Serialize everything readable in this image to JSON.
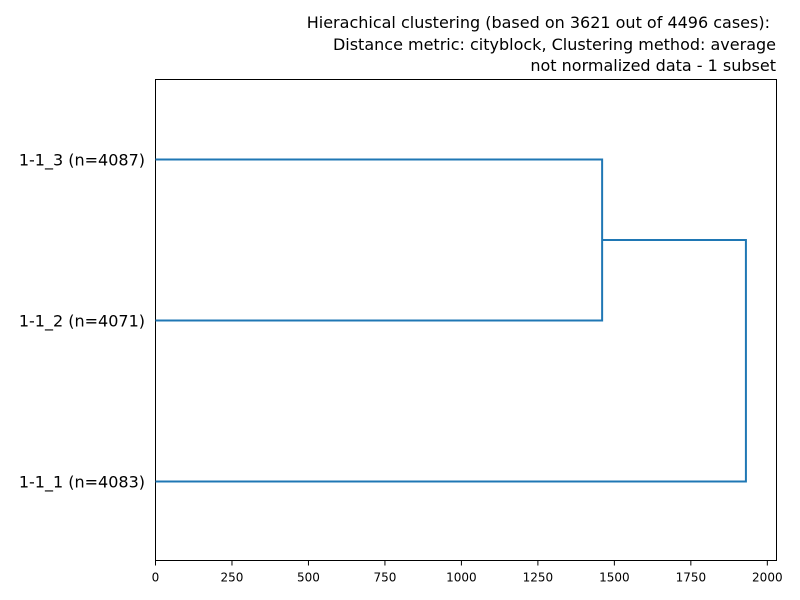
{
  "chart_data": {
    "type": "dendrogram",
    "orientation": "left",
    "title_lines": [
      "Hierachical clustering (based on 3621 out of 4496 cases):",
      "Distance metric: cityblock, Clustering method: average",
      "not normalized data - 1 subset"
    ],
    "leaves": [
      {
        "label": "1-1_3 (n=4087)"
      },
      {
        "label": "1-1_2 (n=4071)"
      },
      {
        "label": "1-1_1 (n=4083)"
      }
    ],
    "merges": [
      {
        "left": 0,
        "right": 1,
        "distance": 1460
      },
      {
        "left": "merge-0",
        "right": 2,
        "distance": 1930
      }
    ],
    "x_axis": {
      "ticks": [
        0,
        250,
        500,
        750,
        1000,
        1250,
        1500,
        1750,
        2000
      ],
      "tick_labels": [
        "0",
        "250",
        "500",
        "750",
        "1000",
        "1250",
        "1500",
        "1750",
        "2000"
      ],
      "xlim": [
        0,
        2030
      ]
    },
    "line_color": "#1f77b4",
    "grid": false
  }
}
